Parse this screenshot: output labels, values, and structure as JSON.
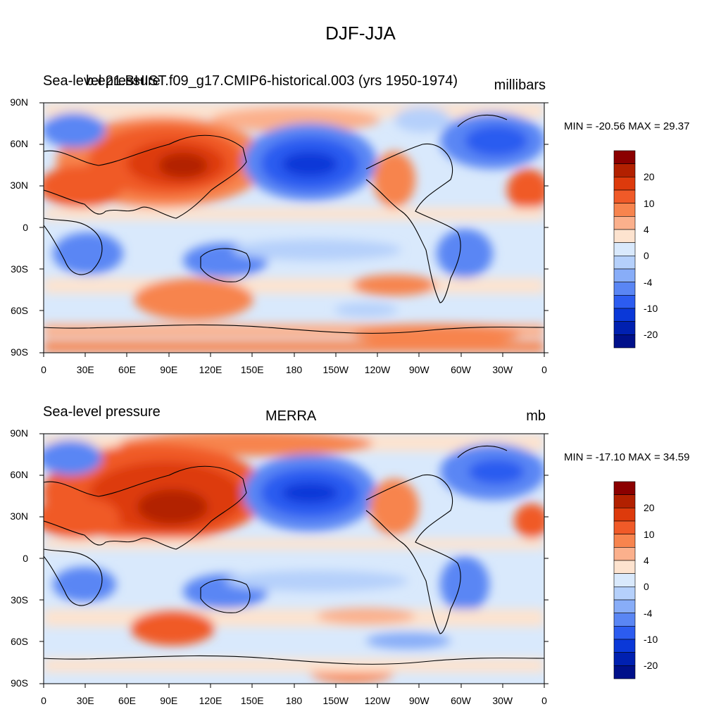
{
  "title": "DJF-JJA",
  "panels": [
    {
      "left_label": "Sea-level pressure",
      "center_label": "b.e21.BHIST.f09_g17.CMIP6-historical.003 (yrs 1950-1974)",
      "right_label": "millibars",
      "min_max": "MIN = -20.56 MAX =  29.37"
    },
    {
      "left_label": "Sea-level pressure",
      "center_label": "MERRA",
      "right_label": "mb",
      "min_max": "MIN = -17.10 MAX =  34.59"
    }
  ],
  "axes": {
    "lat_labels": [
      "90N",
      "60N",
      "30N",
      "0",
      "30S",
      "60S",
      "90S"
    ],
    "lon_labels": [
      "0",
      "30E",
      "60E",
      "90E",
      "120E",
      "150E",
      "180",
      "150W",
      "120W",
      "90W",
      "60W",
      "30W",
      "0"
    ]
  },
  "colorbar": {
    "labels": [
      "20",
      "10",
      "4",
      "0",
      "-4",
      "-10",
      "-20"
    ],
    "colors": [
      "#8b0000",
      "#b22000",
      "#dd3a0c",
      "#f05a28",
      "#f7844e",
      "#fbb08c",
      "#fde3cf",
      "#d9e9fc",
      "#b5d0fb",
      "#88adf8",
      "#5a86f4",
      "#2c5cf0",
      "#0a38d8",
      "#0020b0",
      "#00108a"
    ]
  },
  "map_colors": {
    "ocean_neutral": "#d9e9fc",
    "land_line": "#000000"
  }
}
